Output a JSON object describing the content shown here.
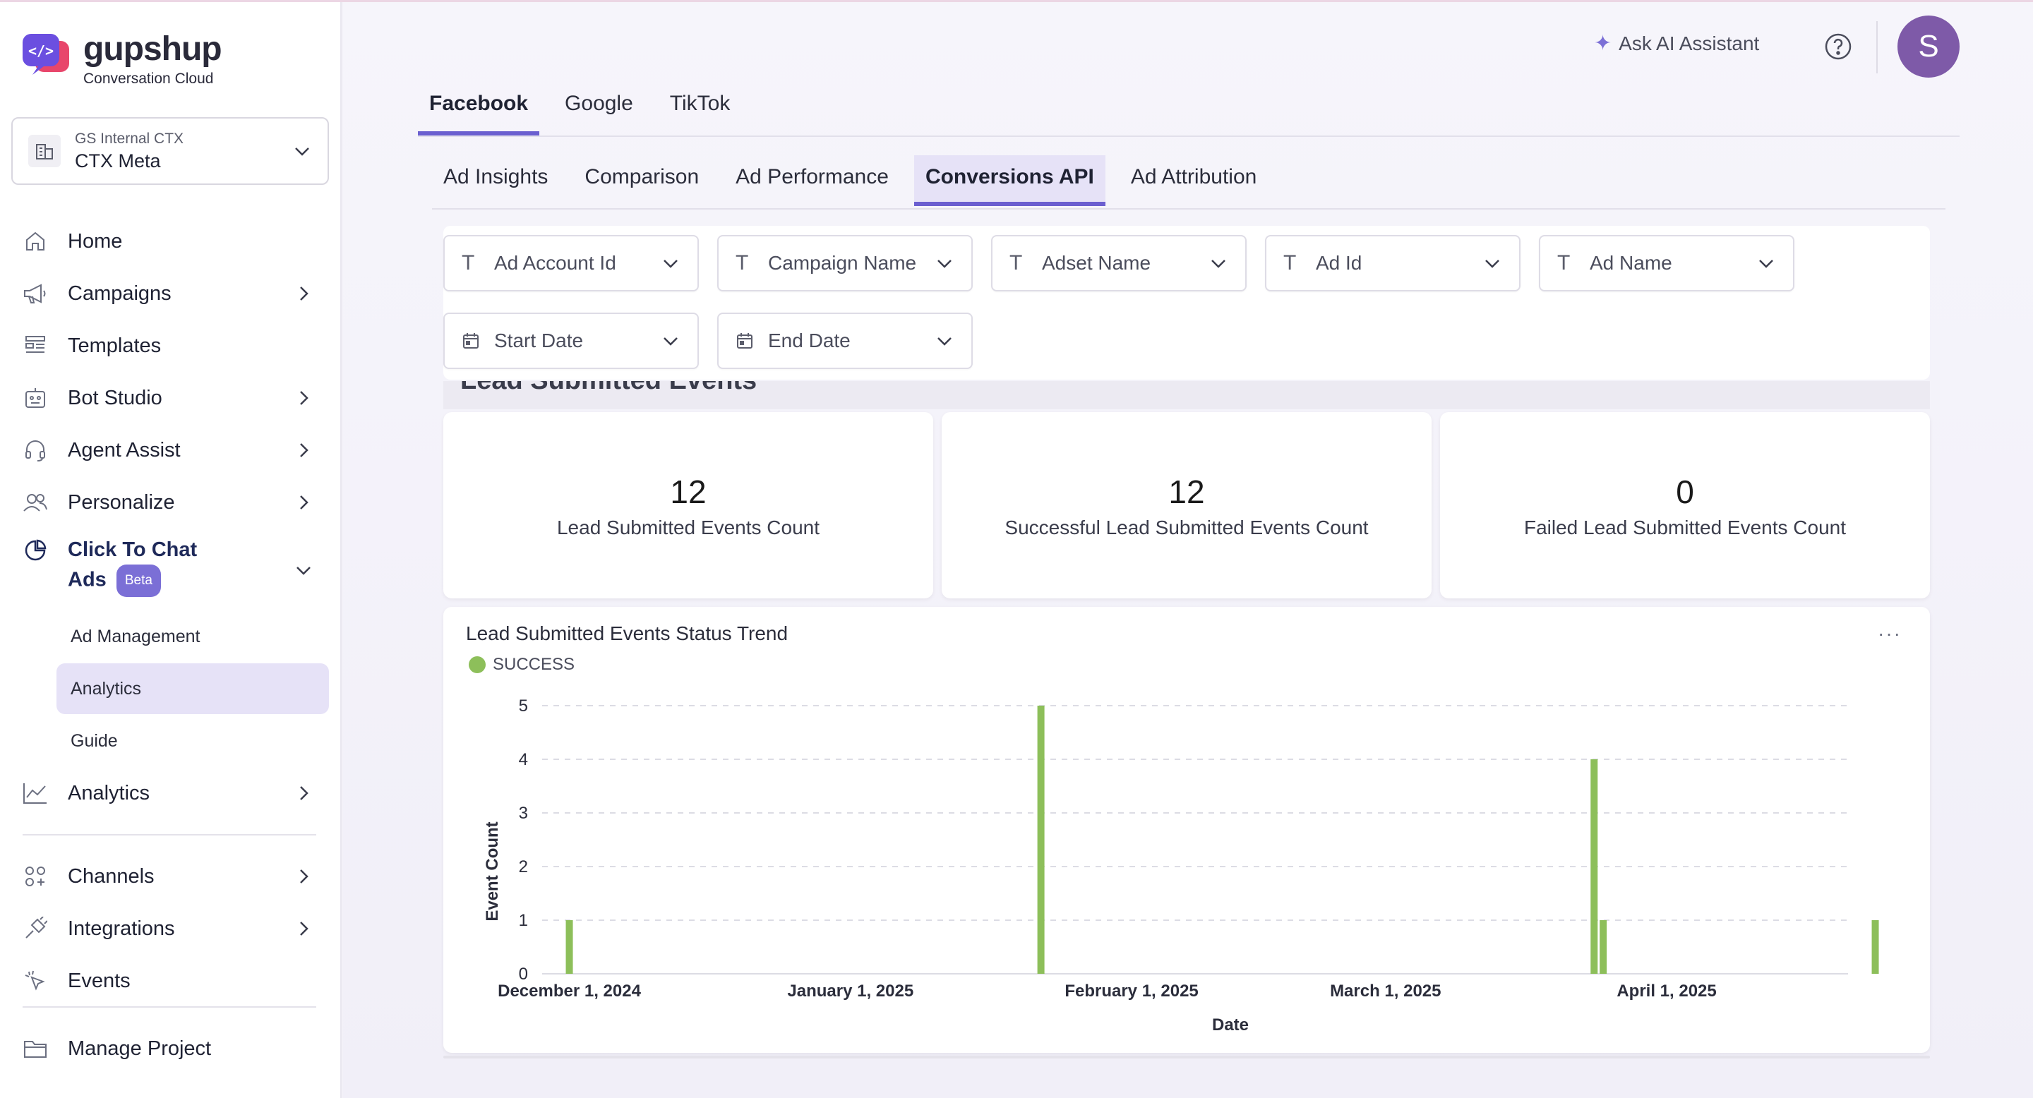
{
  "brand": {
    "name": "gupshup",
    "sub": "Conversation Cloud"
  },
  "project": {
    "org": "GS Internal CTX",
    "name": "CTX Meta"
  },
  "sidebar": {
    "items": [
      {
        "label": "Home",
        "icon": "home-icon"
      },
      {
        "label": "Campaigns",
        "icon": "megaphone-icon"
      },
      {
        "label": "Templates",
        "icon": "templates-icon"
      },
      {
        "label": "Bot Studio",
        "icon": "bot-icon"
      },
      {
        "label": "Agent Assist",
        "icon": "headset-icon"
      },
      {
        "label": "Personalize",
        "icon": "users-icon"
      }
    ],
    "ctc": {
      "label1": "Click To Chat",
      "label2": "Ads",
      "badge": "Beta",
      "icon": "pie-chart-icon"
    },
    "sub_items": [
      "Ad Management",
      "Analytics",
      "Guide"
    ],
    "analytics": {
      "label": "Analytics",
      "icon": "line-chart-icon"
    },
    "bottom_items": [
      {
        "label": "Channels",
        "icon": "channels-icon"
      },
      {
        "label": "Integrations",
        "icon": "plug-icon"
      },
      {
        "label": "Events",
        "icon": "cursor-click-icon"
      }
    ],
    "manage": {
      "label": "Manage Project",
      "icon": "folder-icon"
    }
  },
  "topbar": {
    "ai_label": "Ask AI Assistant",
    "avatar_initial": "S"
  },
  "platform_tabs": [
    "Facebook",
    "Google",
    "TikTok"
  ],
  "sub_tabs": [
    "Ad Insights",
    "Comparison",
    "Ad Performance",
    "Conversions API",
    "Ad Attribution"
  ],
  "filters": {
    "row1": [
      "Ad Account Id",
      "Campaign Name",
      "Adset Name",
      "Ad Id",
      "Ad Name"
    ],
    "row2": [
      "Start Date",
      "End Date"
    ]
  },
  "section": {
    "title": "Lead Submitted Events"
  },
  "stats": [
    {
      "value": "12",
      "label": "Lead Submitted Events Count"
    },
    {
      "value": "12",
      "label": "Successful Lead Submitted Events Count"
    },
    {
      "value": "0",
      "label": "Failed Lead Submitted Events Count"
    }
  ],
  "chart": {
    "title": "Lead Submitted Events Status Trend",
    "menu": "···"
  },
  "chart_data": {
    "type": "bar",
    "title": "Lead Submitted Events Status Trend",
    "xlabel": "Date",
    "ylabel": "Event Count",
    "ylim": [
      0,
      5
    ],
    "yticks": [
      0,
      1,
      2,
      3,
      4,
      5
    ],
    "xlim": [
      "2024-11-28",
      "2025-04-21"
    ],
    "xticks": [
      {
        "date": "2024-12-01",
        "label": "December 1, 2024"
      },
      {
        "date": "2025-01-01",
        "label": "January 1, 2025"
      },
      {
        "date": "2025-02-01",
        "label": "February 1, 2025"
      },
      {
        "date": "2025-03-01",
        "label": "March 1, 2025"
      },
      {
        "date": "2025-04-01",
        "label": "April 1, 2025"
      }
    ],
    "series": [
      {
        "name": "SUCCESS",
        "color": "#8dbf5a",
        "points": [
          {
            "x": "2024-12-01",
            "y": 1
          },
          {
            "x": "2025-01-22",
            "y": 5
          },
          {
            "x": "2025-03-24",
            "y": 4
          },
          {
            "x": "2025-03-25",
            "y": 1
          },
          {
            "x": "2025-04-24",
            "y": 1
          }
        ]
      }
    ],
    "grid": true,
    "legend": "top-left"
  }
}
